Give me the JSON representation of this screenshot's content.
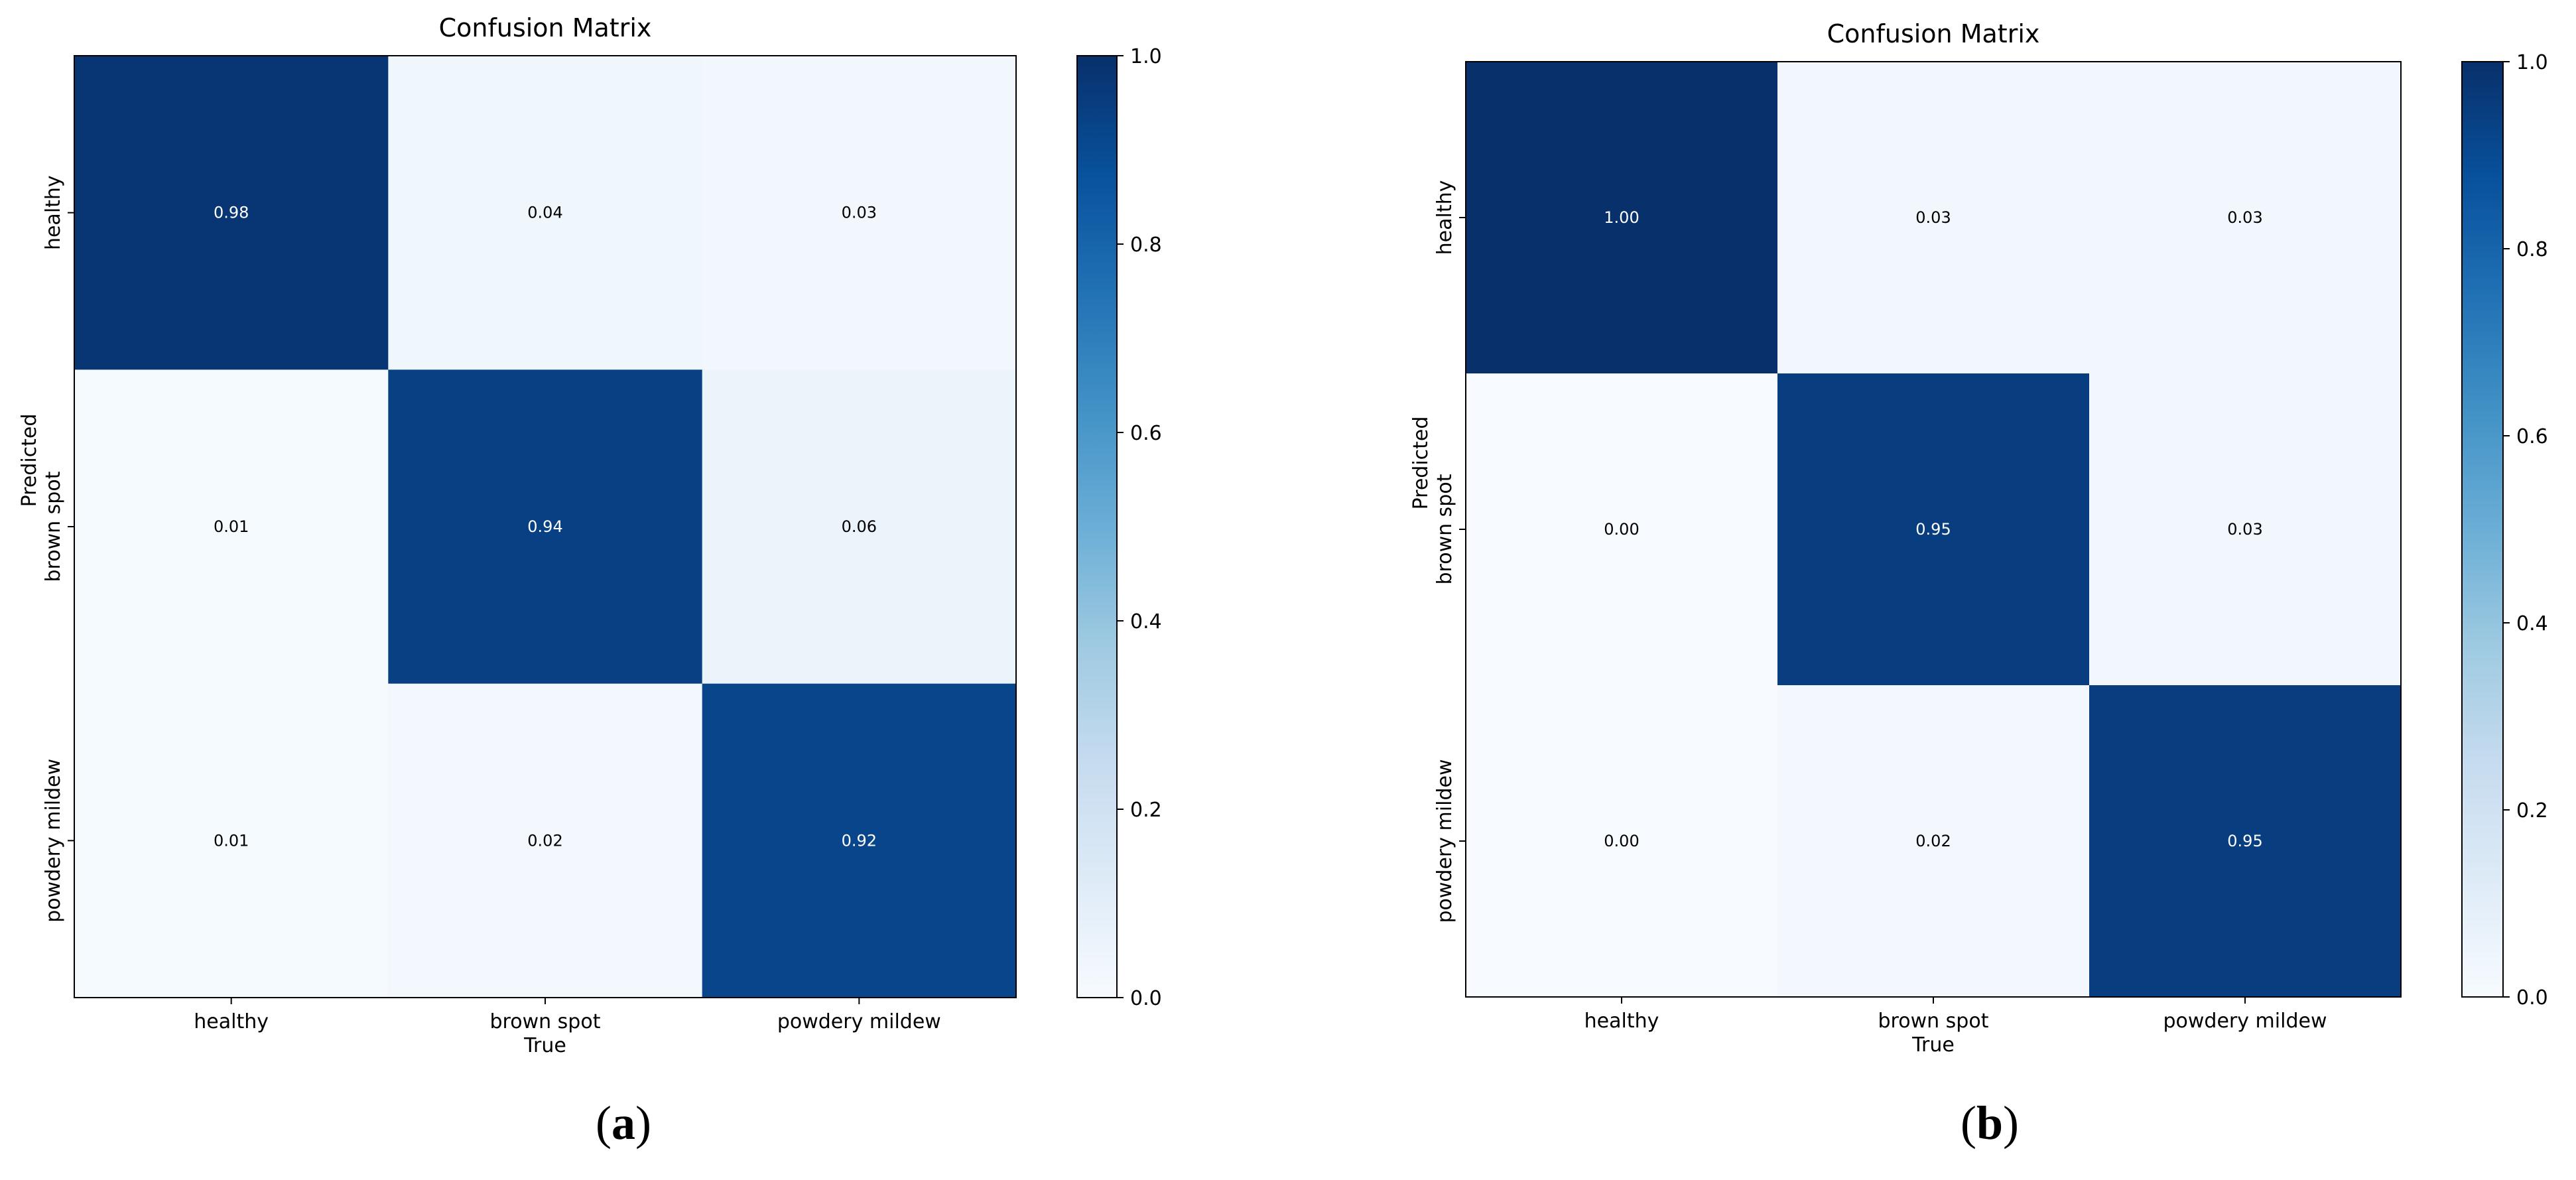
{
  "chart_data": [
    {
      "type": "heatmap",
      "panel": "(a)",
      "panel_letter": "a",
      "title": "Confusion Matrix",
      "xlabel": "True",
      "ylabel": "Predicted",
      "x_categories": [
        "healthy",
        "brown spot",
        "powdery mildew"
      ],
      "y_categories": [
        "healthy",
        "brown spot",
        "powdery mildew"
      ],
      "values": [
        [
          0.98,
          0.04,
          0.03
        ],
        [
          0.01,
          0.94,
          0.06
        ],
        [
          0.01,
          0.02,
          0.92
        ]
      ],
      "labels": [
        [
          "0.98",
          "0.04",
          "0.03"
        ],
        [
          "0.01",
          "0.94",
          "0.06"
        ],
        [
          "0.01",
          "0.02",
          "0.92"
        ]
      ],
      "colormap": "Blues",
      "colorbar": {
        "range": [
          0.0,
          1.0
        ],
        "ticks": [
          "0.0",
          "0.2",
          "0.4",
          "0.6",
          "0.8",
          "1.0"
        ]
      }
    },
    {
      "type": "heatmap",
      "panel": "(b)",
      "panel_letter": "b",
      "title": "Confusion Matrix",
      "xlabel": "True",
      "ylabel": "Predicted",
      "x_categories": [
        "healthy",
        "brown spot",
        "powdery mildew"
      ],
      "y_categories": [
        "healthy",
        "brown spot",
        "powdery mildew"
      ],
      "values": [
        [
          1.0,
          0.03,
          0.03
        ],
        [
          0.0,
          0.95,
          0.03
        ],
        [
          0.0,
          0.02,
          0.95
        ]
      ],
      "labels": [
        [
          "1.00",
          "0.03",
          "0.03"
        ],
        [
          "0.00",
          "0.95",
          "0.03"
        ],
        [
          "0.00",
          "0.02",
          "0.95"
        ]
      ],
      "colormap": "Blues",
      "colorbar": {
        "range": [
          0.0,
          1.0
        ],
        "ticks": [
          "0.0",
          "0.2",
          "0.4",
          "0.6",
          "0.8",
          "1.0"
        ]
      }
    }
  ]
}
